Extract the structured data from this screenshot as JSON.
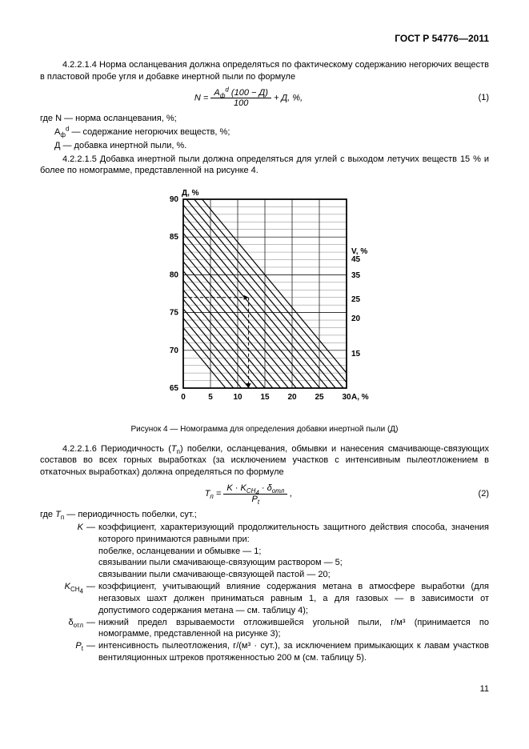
{
  "header": "ГОСТ Р 54776—2011",
  "p1": "4.2.2.1.4  Норма осланцевания должна определяться по фактическому содержанию негорючих веществ в пластовой пробе угля и добавке инертной пыли по формуле",
  "formula1": {
    "lhs": "N =",
    "num_html": "A<sub>ф</sub><sup>d</sup> (100 − Д)",
    "den": "100",
    "tail": " + Д, %,",
    "num_label": "(1)"
  },
  "where1": {
    "intro": "где N — норма осланцевания, %;",
    "l2_html": "A<sub>ф</sub><sup>d</sup> — содержание негорючих веществ, %;",
    "l3": "Д — добавка инертной пыли, %."
  },
  "p2": "4.2.2.1.5  Добавка инертной пыли должна определяться для углей с выходом летучих веществ 15 % и более по номограмме, представленной на рисунке 4.",
  "figure": {
    "y_label": "Д, %",
    "x_label_html": "A<sub>ф</sub><sup>d</sup>, %",
    "right_label_html": "V<sup>daf</sup><sub>сф</sub>, %",
    "y_ticks": [
      90,
      85,
      80,
      75,
      70,
      65
    ],
    "x_ticks": [
      0,
      5,
      10,
      15,
      20,
      25,
      30
    ],
    "right_ticks": [
      45,
      35,
      25,
      20,
      15
    ],
    "caption": "Рисунок  4 — Номограмма для определения добавки инертной пыли (Д)",
    "grid_color": "#000000",
    "line_color": "#000000",
    "dash_color": "#000000",
    "bg": "#ffffff",
    "y_min": 65,
    "y_max": 90,
    "x_min": 0,
    "x_max": 30,
    "diag_count": 18,
    "diag_dy_span": 26,
    "diag_dx_span": 30,
    "example_x": 12,
    "example_y": 77
  },
  "p3_html": "4.2.2.1.6  Периодичность (<i>T</i><sub>п</sub>) побелки, осланцевания, обмывки и нанесения смачивающе-связующих составов во всех горных выработках (за исключением участков с интенсивным пылеотложением в откаточных выработках) должна определяться по формуле",
  "formula2": {
    "lhs_html": "T<sub>п</sub> =",
    "num_html": "K · K<sub>CH<sub>4</sub></sub> · δ<sub>отл</sub>",
    "den_html": "P<sub>t</sub>",
    "tail": ",",
    "num_label": "(2)"
  },
  "where2": {
    "intro_html": "где <i>T</i><sub>п</sub> — периодичность побелки, сут.;",
    "rows": [
      {
        "term_html": "<i>K</i>",
        "body": "коэффициент, характеризующий продолжительность защитного действия способа, значения которого принимаются равными при:"
      },
      {
        "term_html": "",
        "body": "побелке, осланцевании и обмывке — 1;"
      },
      {
        "term_html": "",
        "body": "связывании пыли смачивающе-связующим раствором — 5;"
      },
      {
        "term_html": "",
        "body": "связывании пыли смачивающе-связующей пастой — 20;"
      },
      {
        "term_html": "<i>K</i><sub>CH<sub>4</sub></sub>",
        "body": "коэффициент, учитывающий влияние содержания метана в атмосфере выработки (для негазовых шахт должен приниматься равным 1, а для газовых — в зависимости от допустимого содержания метана — см. таблицу 4);"
      },
      {
        "term_html": "δ<sub>отл</sub>",
        "body": "нижний предел взрываемости отложившейся угольной пыли, г/м³ (принимается по номограмме, представленной на рисунке 3);"
      },
      {
        "term_html": "<i>P</i><sub>t</sub>",
        "body": "интенсивность пылеотложения, г/(м³ · сут.), за исключением примыкающих к лавам участков вентиляционных штреков протяженностью 200 м (см. таблицу 5)."
      }
    ]
  },
  "pagenum": "11"
}
